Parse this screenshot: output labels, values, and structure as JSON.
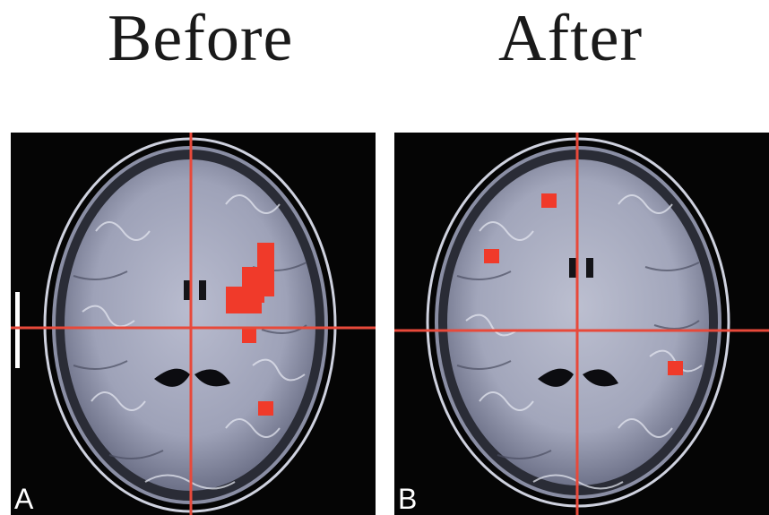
{
  "titles": {
    "before": "Before",
    "after": "After"
  },
  "panels": [
    {
      "letter": "A",
      "crosshair_color": "#e8493a",
      "overlay_color": "#f03a2a"
    },
    {
      "letter": "B",
      "crosshair_color": "#e8493a",
      "overlay_color": "#f03a2a"
    }
  ]
}
